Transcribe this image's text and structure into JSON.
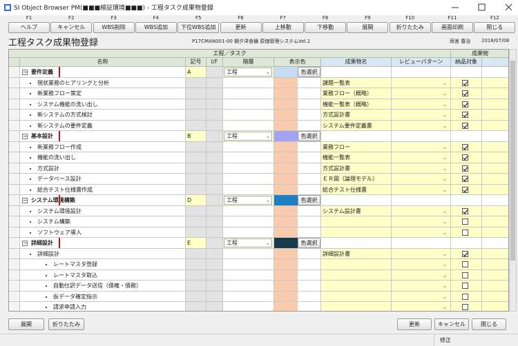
{
  "window": {
    "title": "SI Object Browser PM(■■■検証環境■■■) - 工程タスク成果物登録"
  },
  "function_keys": [
    {
      "key": "F1",
      "label": "ヘルプ"
    },
    {
      "key": "F2",
      "label": "キャンセル"
    },
    {
      "key": "F3",
      "label": "WBS削除"
    },
    {
      "key": "F4",
      "label": "WBS追加"
    },
    {
      "key": "F5",
      "label": "下位WBS追加"
    },
    {
      "key": "F6",
      "label": "更新"
    },
    {
      "key": "F7",
      "label": "上移動"
    },
    {
      "key": "F8",
      "label": "下移動"
    },
    {
      "key": "F9",
      "label": "展開"
    },
    {
      "key": "F10",
      "label": "折りたたみ"
    },
    {
      "key": "F11",
      "label": "画面印刷"
    },
    {
      "key": "F12",
      "label": "閉じる"
    }
  ],
  "header": {
    "title": "工程タスク成果物登録",
    "project": "P17CMAN001-00 朝夕洋食器 原価管理システムVol.1",
    "user": "両宮 春治",
    "date": "2018/07/08"
  },
  "table": {
    "group_headers": [
      "工程／タスク",
      "成果物"
    ],
    "columns": [
      "名称",
      "記号",
      "I/F",
      "階層",
      "表示色",
      "成果物名",
      "レビューパターン",
      "納品対象"
    ],
    "rows": [
      {
        "kind": "process",
        "name": "要件定義",
        "code": "A",
        "level": "工程",
        "color": "#c6dcf2",
        "color_button": "色選択"
      },
      {
        "kind": "task",
        "name": "現状業務のヒアリングと分析",
        "color": "#f8cbad",
        "deliverable": "課題一覧表",
        "checked": true
      },
      {
        "kind": "task",
        "name": "新業務フロー策定",
        "color": "#f8cbad",
        "deliverable": "業務フロー（概略）",
        "checked": true
      },
      {
        "kind": "task",
        "name": "システム機能の洗い出し",
        "color": "#f8cbad",
        "deliverable": "機能一覧表（概略）",
        "checked": true
      },
      {
        "kind": "task",
        "name": "新システムの方式検討",
        "color": "#f8cbad",
        "deliverable": "方式設計書",
        "checked": true
      },
      {
        "kind": "task",
        "name": "新システムの要件定義",
        "color": "#f8cbad",
        "deliverable": "システム要件定義書",
        "checked": true
      },
      {
        "kind": "process",
        "name": "基本設計",
        "code": "B",
        "level": "工程",
        "color": "#a3a3f0",
        "color_button": "色選択"
      },
      {
        "kind": "task",
        "name": "新業務フロー作成",
        "color": "#f8cbad",
        "deliverable": "業務フロー",
        "checked": true
      },
      {
        "kind": "task",
        "name": "機能の洗い出し",
        "color": "#f8cbad",
        "deliverable": "機能一覧表",
        "checked": true
      },
      {
        "kind": "task",
        "name": "方式設計",
        "color": "#f8cbad",
        "deliverable": "方式設計書",
        "checked": true
      },
      {
        "kind": "task",
        "name": "データベース設計",
        "color": "#f8cbad",
        "deliverable": "ＥＲ図（論理モデル）",
        "checked": true
      },
      {
        "kind": "task",
        "name": "総合テスト仕様書作成",
        "color": "#f8cbad",
        "deliverable": "総合テスト仕様書",
        "checked": true
      },
      {
        "kind": "process",
        "name": "システム環境構築",
        "code": "D",
        "level": "工程",
        "color": "#1e7ec4",
        "color_button": "色選択"
      },
      {
        "kind": "task",
        "name": "システム環境設計",
        "color": "#f8cbad",
        "deliverable": "システム設計書",
        "checked": true
      },
      {
        "kind": "task",
        "name": "システム構築",
        "color": "#f8cbad",
        "checked": false
      },
      {
        "kind": "task",
        "name": "ソフトウェア導入",
        "color": "#f8cbad",
        "checked": false
      },
      {
        "kind": "process",
        "name": "詳細設計",
        "code": "E",
        "level": "工程",
        "color": "#173b4b",
        "color_button": "色選択"
      },
      {
        "kind": "task",
        "name": "詳細設計",
        "color": "#f8cbad",
        "deliverable": "詳細設計書",
        "checked": true
      },
      {
        "kind": "subtask",
        "name": "レートマスタ登録",
        "color": "#f8cbad",
        "checked": false
      },
      {
        "kind": "subtask",
        "name": "レートマスタ取込",
        "color": "#f8cbad",
        "checked": false
      },
      {
        "kind": "subtask",
        "name": "自動仕訳データ送信（債権・債務）",
        "color": "#f8cbad",
        "checked": false
      },
      {
        "kind": "subtask",
        "name": "仮データ確定指示",
        "color": "#f8cbad",
        "checked": false
      },
      {
        "kind": "subtask",
        "name": "請求申請入力",
        "color": "#f8cbad",
        "checked": false
      }
    ]
  },
  "footer": {
    "left_buttons": [
      "展開",
      "折りたたみ"
    ],
    "right_buttons": [
      "更新",
      "キャンセル",
      "閉じる"
    ],
    "status": "修正"
  }
}
